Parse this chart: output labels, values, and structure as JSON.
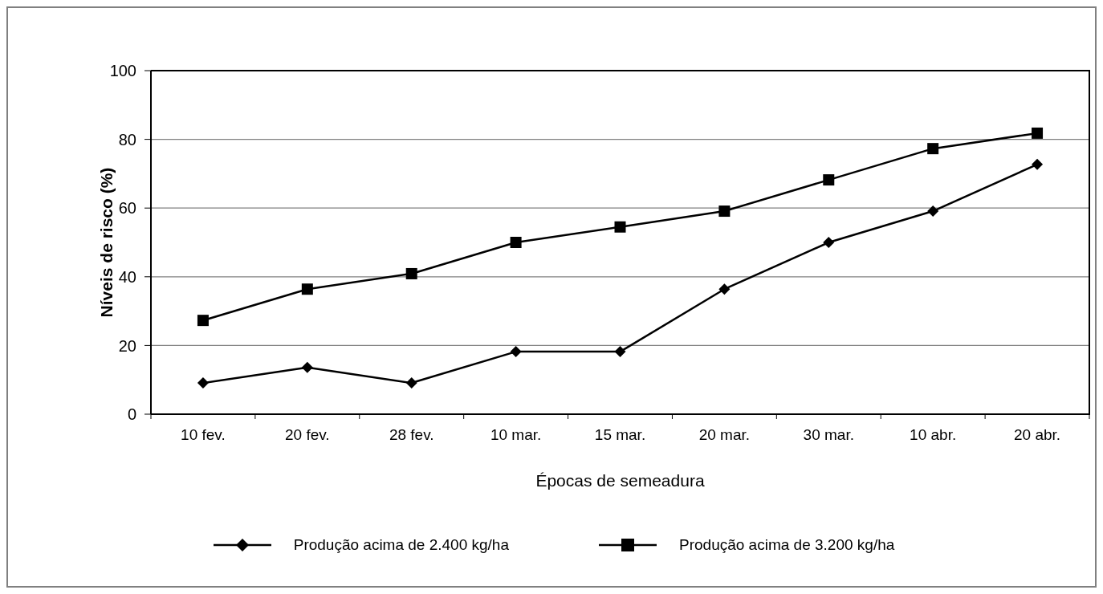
{
  "chart_data": {
    "type": "line",
    "xlabel": "Épocas de semeadura",
    "ylabel": "Níveis de risco (%)",
    "categories": [
      "10 fev.",
      "20 fev.",
      "28 fev.",
      "10 mar.",
      "15 mar.",
      "20 mar.",
      "30 mar.",
      "10 abr.",
      "20 abr."
    ],
    "series": [
      {
        "name": "Produção acima de 2.400 kg/ha",
        "color": "#000000",
        "marker": "diamond",
        "values": [
          9.1,
          13.6,
          9.1,
          18.2,
          18.2,
          36.4,
          50.0,
          59.1,
          72.7
        ]
      },
      {
        "name": "Produção acima de 3.200 kg/ha",
        "color": "#000000",
        "marker": "square",
        "values": [
          27.3,
          36.4,
          40.9,
          50.0,
          54.5,
          59.1,
          68.2,
          77.3,
          81.8
        ]
      }
    ],
    "ylim": [
      0,
      100
    ],
    "yticks": [
      0,
      20,
      40,
      60,
      80,
      100
    ],
    "grid": "y",
    "legend": "bottom",
    "line_style": "solid"
  }
}
